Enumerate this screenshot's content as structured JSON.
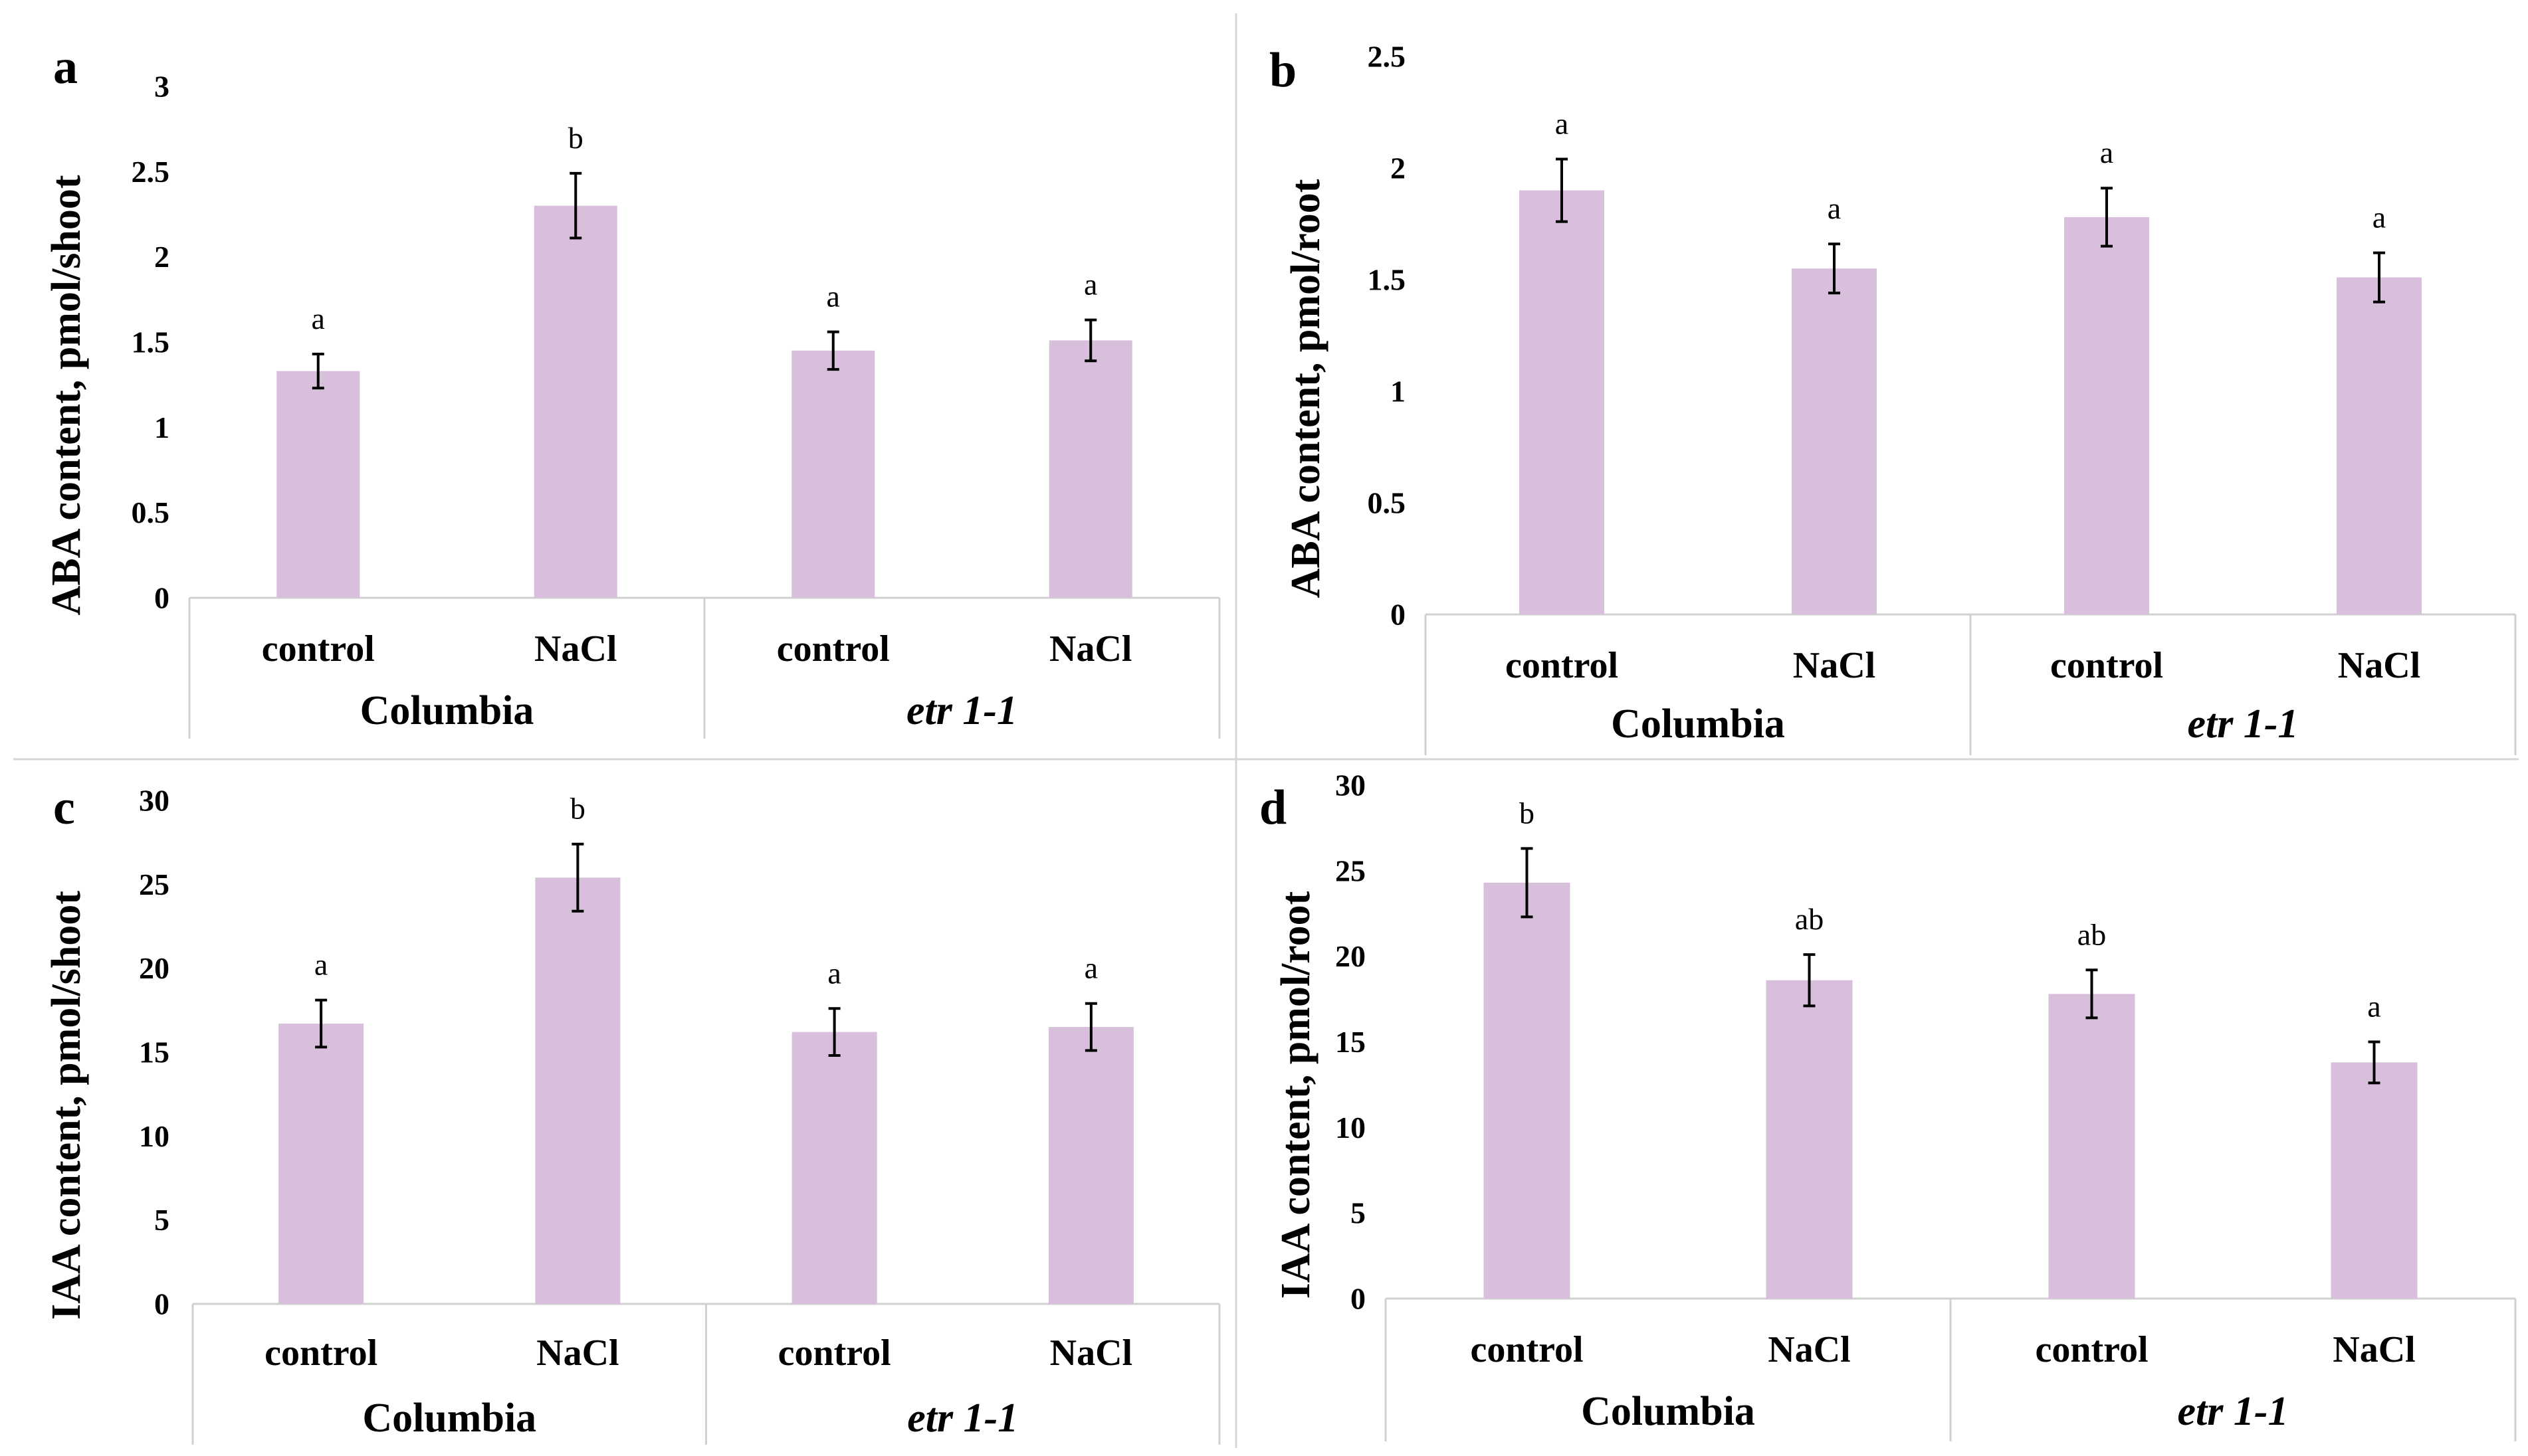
{
  "chart_data": [
    {
      "type": "bar",
      "panel": "a",
      "ylabel": "ABA content, pmol/shoot",
      "ylim": [
        0,
        3
      ],
      "yticks": [
        "0",
        "0.5",
        "1",
        "1.5",
        "2",
        "2.5",
        "3"
      ],
      "categories": [
        "control",
        "NaCl",
        "control",
        "NaCl"
      ],
      "groups": [
        {
          "label": "Columbia",
          "italic": false
        },
        {
          "label": "etr 1-1",
          "italic": true
        }
      ],
      "values": [
        1.33,
        2.3,
        1.45,
        1.51
      ],
      "errors": [
        0.1,
        0.19,
        0.11,
        0.12
      ],
      "significance": [
        "a",
        "b",
        "a",
        "a"
      ]
    },
    {
      "type": "bar",
      "panel": "b",
      "ylabel": "ABA content, pmol/root",
      "ylim": [
        0,
        2.5
      ],
      "yticks": [
        "0",
        "0.5",
        "1",
        "1.5",
        "2",
        "2.5"
      ],
      "categories": [
        "control",
        "NaCl",
        "control",
        "NaCl"
      ],
      "groups": [
        {
          "label": "Columbia",
          "italic": false
        },
        {
          "label": "etr 1-1",
          "italic": true
        }
      ],
      "values": [
        1.9,
        1.55,
        1.78,
        1.51
      ],
      "errors": [
        0.14,
        0.11,
        0.13,
        0.11
      ],
      "significance": [
        "a",
        "a",
        "a",
        "a"
      ]
    },
    {
      "type": "bar",
      "panel": "c",
      "ylabel": "IAA content, pmol/shoot",
      "ylim": [
        0,
        30
      ],
      "yticks": [
        "0",
        "5",
        "10",
        "15",
        "20",
        "25",
        "30"
      ],
      "categories": [
        "control",
        "NaCl",
        "control",
        "NaCl"
      ],
      "groups": [
        {
          "label": "Columbia",
          "italic": false
        },
        {
          "label": "etr 1-1",
          "italic": true
        }
      ],
      "values": [
        16.7,
        25.4,
        16.2,
        16.5
      ],
      "errors": [
        1.4,
        2.0,
        1.4,
        1.4
      ],
      "significance": [
        "a",
        "b",
        "a",
        "a"
      ]
    },
    {
      "type": "bar",
      "panel": "d",
      "ylabel": "IAA content, pmol/root",
      "ylim": [
        0,
        30
      ],
      "yticks": [
        "0",
        "5",
        "10",
        "15",
        "20",
        "25",
        "30"
      ],
      "categories": [
        "control",
        "NaCl",
        "control",
        "NaCl"
      ],
      "groups": [
        {
          "label": "Columbia",
          "italic": false
        },
        {
          "label": "etr 1-1",
          "italic": true
        }
      ],
      "values": [
        24.3,
        18.6,
        17.8,
        13.8
      ],
      "errors": [
        2.0,
        1.5,
        1.4,
        1.2
      ],
      "significance": [
        "b",
        "ab",
        "ab",
        "a"
      ]
    }
  ],
  "colors": {
    "bar_fill": "#d8bfdb",
    "error_bar": "#000000",
    "axis_frame": "#d0d0d0",
    "background": "#ffffff"
  }
}
